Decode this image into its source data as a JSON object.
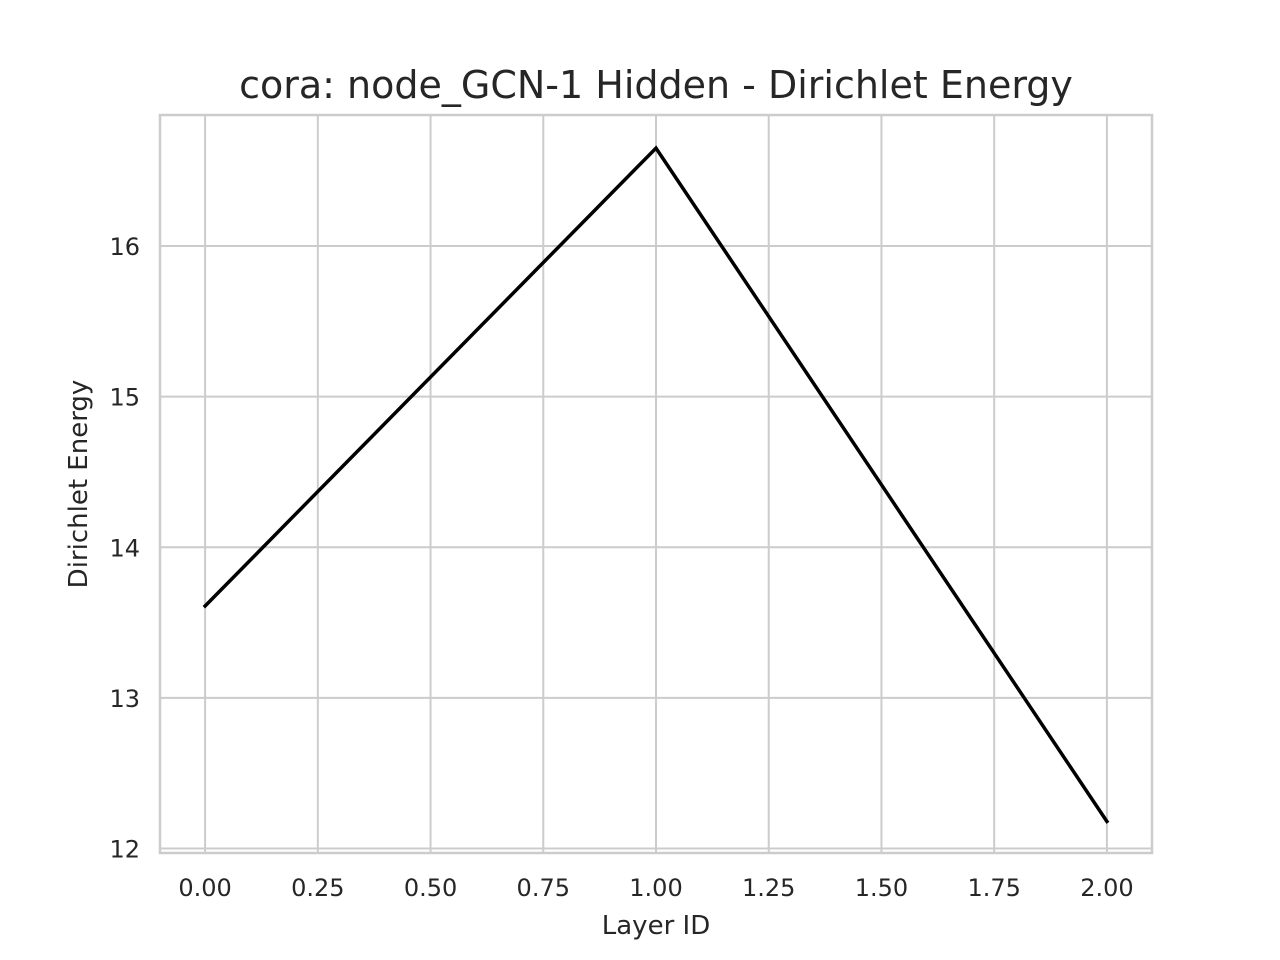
{
  "chart_data": {
    "type": "line",
    "title": "cora: node_GCN-1 Hidden - Dirichlet Energy",
    "xlabel": "Layer ID",
    "ylabel": "Dirichlet Energy",
    "xlim": [
      -0.1,
      2.1
    ],
    "ylim": [
      11.97,
      16.87
    ],
    "x_ticks": [
      0.0,
      0.25,
      0.5,
      0.75,
      1.0,
      1.25,
      1.5,
      1.75,
      2.0
    ],
    "x_tick_labels": [
      "0.00",
      "0.25",
      "0.50",
      "0.75",
      "1.00",
      "1.25",
      "1.50",
      "1.75",
      "2.00"
    ],
    "y_ticks": [
      12,
      13,
      14,
      15,
      16
    ],
    "y_tick_labels": [
      "12",
      "13",
      "14",
      "15",
      "16"
    ],
    "grid": true,
    "series": [
      {
        "color": "#000000",
        "x": [
          0,
          1,
          2
        ],
        "y": [
          13.61,
          16.65,
          12.18
        ]
      }
    ]
  }
}
